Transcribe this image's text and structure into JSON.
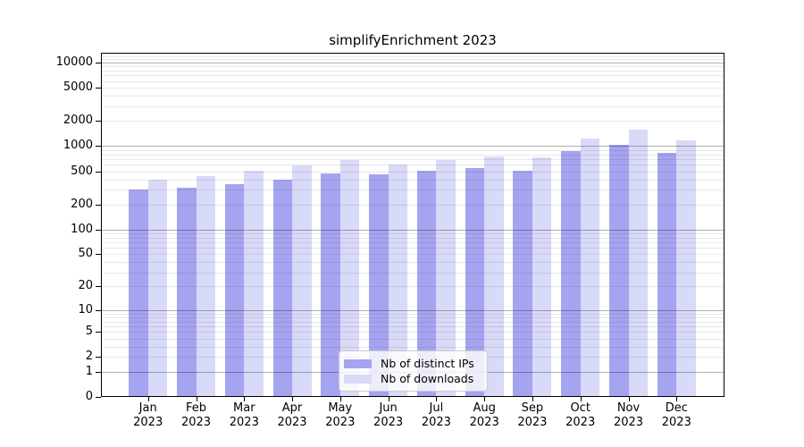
{
  "title": "simplifyEnrichment 2023",
  "legend": {
    "items": [
      {
        "label": "Nb of distinct IPs",
        "color": "#a4a4f0"
      },
      {
        "label": "Nb of downloads",
        "color": "#d9d9f8"
      }
    ]
  },
  "chart_data": {
    "type": "bar",
    "title": "simplifyEnrichment 2023",
    "categories": [
      "Jan 2023",
      "Feb 2023",
      "Mar 2023",
      "Apr 2023",
      "May 2023",
      "Jun 2023",
      "Jul 2023",
      "Aug 2023",
      "Sep 2023",
      "Oct 2023",
      "Nov 2023",
      "Dec 2023"
    ],
    "x_tick_lines": [
      {
        "month": "Jan",
        "year": "2023"
      },
      {
        "month": "Feb",
        "year": "2023"
      },
      {
        "month": "Mar",
        "year": "2023"
      },
      {
        "month": "Apr",
        "year": "2023"
      },
      {
        "month": "May",
        "year": "2023"
      },
      {
        "month": "Jun",
        "year": "2023"
      },
      {
        "month": "Jul",
        "year": "2023"
      },
      {
        "month": "Aug",
        "year": "2023"
      },
      {
        "month": "Sep",
        "year": "2023"
      },
      {
        "month": "Oct",
        "year": "2023"
      },
      {
        "month": "Nov",
        "year": "2023"
      },
      {
        "month": "Dec",
        "year": "2023"
      }
    ],
    "series": [
      {
        "name": "Nb of distinct IPs",
        "color": "#a4a4f0",
        "values": [
          300,
          320,
          350,
          395,
          475,
          460,
          505,
          540,
          505,
          880,
          1030,
          830
        ]
      },
      {
        "name": "Nb of downloads",
        "color": "#d9d9f8",
        "values": [
          400,
          440,
          510,
          590,
          680,
          610,
          690,
          760,
          730,
          1230,
          1560,
          1170
        ]
      }
    ],
    "xlabel": "",
    "ylabel": "",
    "yscale": "log1p",
    "ylim": [
      0,
      12900
    ],
    "yticks": [
      0,
      1,
      2,
      5,
      10,
      20,
      50,
      100,
      200,
      500,
      1000,
      2000,
      5000,
      10000
    ],
    "grid": true,
    "gridlines_major": [
      1,
      10,
      100,
      1000,
      10000
    ],
    "legend_position": "lower center"
  }
}
